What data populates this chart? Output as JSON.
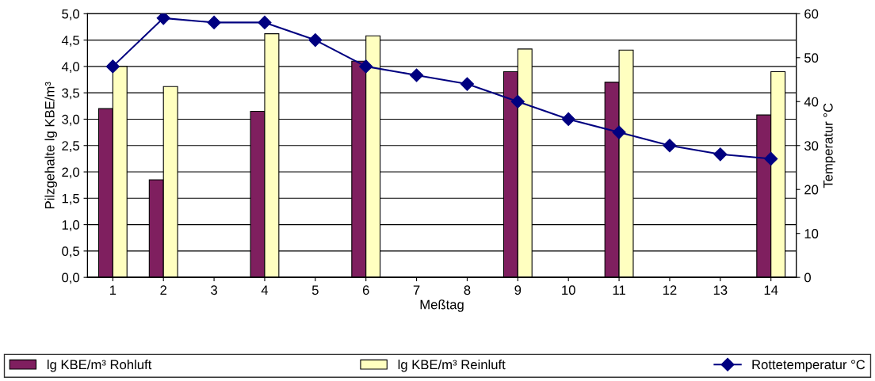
{
  "chart_data": {
    "type": "bar",
    "xlabel": "Meßtag",
    "ylabel": "Pilzgehalte lg KBE/m³",
    "y2label": "Temperatur °C",
    "categories": [
      "1",
      "2",
      "3",
      "4",
      "5",
      "6",
      "7",
      "8",
      "9",
      "10",
      "11",
      "12",
      "13",
      "14"
    ],
    "series": [
      {
        "name": "lg KBE/m³ Rohluft",
        "color": "#7f1f5f",
        "values": [
          3.2,
          1.85,
          null,
          3.15,
          null,
          4.1,
          null,
          null,
          3.9,
          null,
          3.7,
          null,
          null,
          3.08
        ]
      },
      {
        "name": "lg KBE/m³ Reinluft",
        "color": "#ffffc0",
        "values": [
          4.0,
          3.62,
          null,
          4.62,
          null,
          4.58,
          null,
          null,
          4.33,
          null,
          4.31,
          null,
          null,
          3.9
        ]
      },
      {
        "name": "Rottetemperatur °C",
        "type": "line",
        "axis": "y2",
        "marker": "diamond",
        "color": "#000080",
        "values": [
          48,
          59,
          58,
          58,
          54,
          48,
          46,
          44,
          40,
          36,
          33,
          30,
          28,
          27
        ]
      }
    ],
    "ylim": [
      0,
      5
    ],
    "yticks": [
      {
        "value": 0,
        "label": "0,0"
      },
      {
        "value": 0.5,
        "label": "0,5"
      },
      {
        "value": 1,
        "label": "1,0"
      },
      {
        "value": 1.5,
        "label": "1,5"
      },
      {
        "value": 2,
        "label": "2,0"
      },
      {
        "value": 2.5,
        "label": "2,5"
      },
      {
        "value": 3,
        "label": "3,0"
      },
      {
        "value": 3.5,
        "label": "3,5"
      },
      {
        "value": 4,
        "label": "4,0"
      },
      {
        "value": 4.5,
        "label": "4,5"
      },
      {
        "value": 5,
        "label": "5,0"
      }
    ],
    "y2lim": [
      0,
      60
    ],
    "y2ticks": [
      0,
      10,
      20,
      30,
      40,
      50,
      60
    ],
    "grid": "y",
    "legend": "bottom"
  }
}
